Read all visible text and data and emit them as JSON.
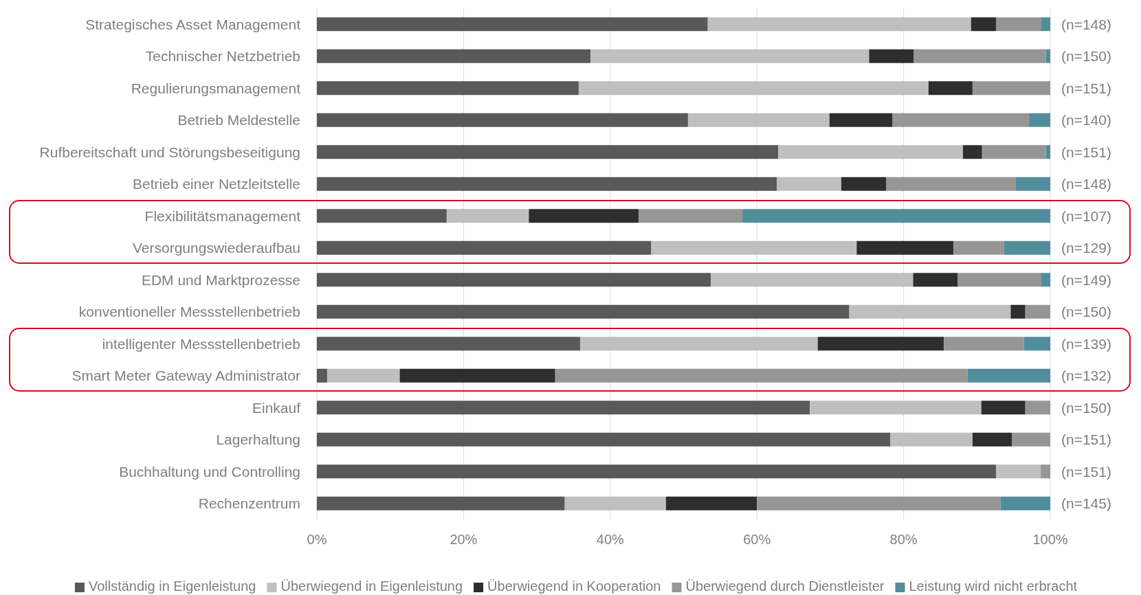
{
  "chart_data": {
    "type": "bar",
    "orientation": "horizontal",
    "stacked": true,
    "categories": [
      "Strategisches Asset Management",
      "Technischer Netzbetrieb",
      "Regulierungsmanagement",
      "Betrieb Meldestelle",
      "Rufbereitschaft und Störungsbeseitigung",
      "Betrieb einer Netzleitstelle",
      "Flexibilitätsmanagement",
      "Versorgungswiederaufbau",
      "EDM und Marktprozesse",
      "konventioneller Messstellenbetrieb",
      "intelligenter Messstellenbetrieb",
      "Smart Meter Gateway Administrator",
      "Einkauf",
      "Lagerhaltung",
      "Buchhaltung und Controlling",
      "Rechenzentrum"
    ],
    "series": [
      {
        "name": "Vollständig in Eigenleistung",
        "color": "#595959",
        "values": [
          53.3,
          37.3,
          35.7,
          50.6,
          62.9,
          62.7,
          17.7,
          45.6,
          53.7,
          72.6,
          35.9,
          1.4,
          67.2,
          78.2,
          92.6,
          33.8
        ]
      },
      {
        "name": "Überwiegend in Eigenleistung",
        "color": "#bfbfbf",
        "values": [
          35.9,
          38.0,
          47.7,
          19.3,
          25.2,
          8.8,
          11.2,
          28.0,
          27.6,
          22.0,
          32.4,
          9.9,
          23.4,
          11.2,
          6.1,
          13.8
        ]
      },
      {
        "name": "Überwiegend in Kooperation",
        "color": "#2e2e2e",
        "values": [
          3.4,
          6.1,
          6.0,
          8.6,
          2.6,
          6.1,
          15.0,
          13.2,
          6.1,
          2.0,
          17.2,
          21.2,
          6.0,
          5.4,
          0,
          12.4
        ]
      },
      {
        "name": "Überwiegend durch Dienstleister",
        "color": "#969696",
        "values": [
          6.1,
          18.0,
          10.6,
          18.6,
          8.7,
          17.7,
          14.1,
          6.9,
          11.3,
          3.4,
          10.9,
          56.2,
          3.4,
          5.2,
          1.3,
          33.2
        ]
      },
      {
        "name": "Leistung wird nicht erbracht",
        "color": "#528d9c",
        "values": [
          1.3,
          0.6,
          0,
          2.9,
          0.6,
          4.7,
          42.0,
          6.3,
          1.3,
          0,
          3.6,
          11.3,
          0,
          0,
          0,
          6.8
        ]
      }
    ],
    "annotations": [
      "(n=148)",
      "(n=150)",
      "(n=151)",
      "(n=140)",
      "(n=151)",
      "(n=148)",
      "(n=107)",
      "(n=129)",
      "(n=149)",
      "(n=150)",
      "(n=139)",
      "(n=132)",
      "(n=150)",
      "(n=151)",
      "(n=151)",
      "(n=145)"
    ],
    "xlim": [
      0,
      100
    ],
    "xticks": [
      {
        "value": 0,
        "label": "0%"
      },
      {
        "value": 20,
        "label": "20%"
      },
      {
        "value": 40,
        "label": "40%"
      },
      {
        "value": 60,
        "label": "60%"
      },
      {
        "value": 80,
        "label": "80%"
      },
      {
        "value": 100,
        "label": "100%"
      }
    ],
    "grid": "x",
    "legend": "bottom"
  }
}
